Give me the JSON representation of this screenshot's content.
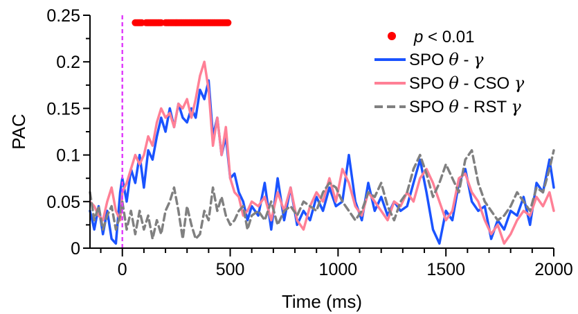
{
  "chart_data": {
    "type": "line",
    "xlabel": "Time (ms)",
    "ylabel": "PAC",
    "xlim": [
      -150,
      2000
    ],
    "ylim": [
      0,
      0.25
    ],
    "x_ticks": [
      0,
      500,
      1000,
      1500,
      2000
    ],
    "x_tick_labels": [
      "0",
      "500",
      "1000",
      "1500",
      "2000"
    ],
    "y_ticks": [
      0,
      0.05,
      0.1,
      0.15,
      0.2,
      0.25
    ],
    "y_tick_labels": [
      "0",
      "0.05",
      "0.1",
      "0.15",
      "0.2",
      "0.25"
    ],
    "grid": false,
    "legend_position": "top-right",
    "event_marker": {
      "x": 0,
      "color": "#e040fb",
      "style": "dashed"
    },
    "significance": {
      "label_italic": "p",
      "label_rest": " < 0.01",
      "color": "#ff0000",
      "y": 0.242,
      "segments": [
        [
          60,
          90
        ],
        [
          110,
          180
        ],
        [
          200,
          490
        ]
      ]
    },
    "series": [
      {
        "name": "SPO θ - γ",
        "label_main": "SPO ",
        "label_theta": "θ",
        "label_mid": " - ",
        "label_gamma": "γ",
        "color": "#1a53ff",
        "dash": "solid",
        "x": [
          -150,
          -130,
          -110,
          -90,
          -70,
          -50,
          -30,
          -10,
          0,
          20,
          40,
          60,
          80,
          100,
          120,
          140,
          160,
          180,
          200,
          220,
          240,
          260,
          280,
          300,
          320,
          340,
          360,
          380,
          400,
          420,
          440,
          460,
          480,
          500,
          520,
          540,
          560,
          580,
          600,
          630,
          660,
          690,
          720,
          750,
          780,
          810,
          840,
          870,
          900,
          930,
          960,
          990,
          1020,
          1050,
          1080,
          1110,
          1140,
          1170,
          1200,
          1230,
          1260,
          1290,
          1320,
          1350,
          1380,
          1410,
          1440,
          1470,
          1500,
          1530,
          1560,
          1590,
          1620,
          1650,
          1680,
          1710,
          1740,
          1770,
          1800,
          1830,
          1860,
          1890,
          1920,
          1950,
          1980,
          2000
        ],
        "y": [
          0.04,
          0.02,
          0.045,
          0.015,
          0.04,
          0.01,
          0.005,
          0.06,
          0.075,
          0.05,
          0.085,
          0.07,
          0.1,
          0.065,
          0.105,
          0.095,
          0.12,
          0.14,
          0.125,
          0.15,
          0.13,
          0.155,
          0.14,
          0.135,
          0.15,
          0.14,
          0.17,
          0.16,
          0.18,
          0.12,
          0.14,
          0.1,
          0.12,
          0.075,
          0.08,
          0.06,
          0.05,
          0.03,
          0.045,
          0.035,
          0.07,
          0.02,
          0.075,
          0.03,
          0.065,
          0.025,
          0.04,
          0.03,
          0.055,
          0.04,
          0.065,
          0.045,
          0.05,
          0.1,
          0.05,
          0.03,
          0.07,
          0.04,
          0.055,
          0.035,
          0.05,
          0.04,
          0.045,
          0.07,
          0.095,
          0.06,
          0.02,
          0.005,
          0.04,
          0.03,
          0.07,
          0.085,
          0.05,
          0.04,
          0.045,
          0.01,
          0.03,
          0.02,
          0.04,
          0.035,
          0.055,
          0.025,
          0.07,
          0.06,
          0.095,
          0.065
        ]
      },
      {
        "name": "SPO θ - CSO γ",
        "label_main": "SPO ",
        "label_theta": "θ",
        "label_mid": " - CSO ",
        "label_gamma": "γ",
        "color": "#ff8096",
        "dash": "solid",
        "x": [
          -150,
          -130,
          -110,
          -90,
          -70,
          -50,
          -30,
          -10,
          0,
          20,
          40,
          60,
          80,
          100,
          120,
          140,
          160,
          180,
          200,
          220,
          240,
          260,
          280,
          300,
          320,
          340,
          360,
          380,
          400,
          420,
          440,
          460,
          480,
          500,
          520,
          540,
          560,
          580,
          600,
          630,
          660,
          690,
          720,
          750,
          780,
          810,
          840,
          870,
          900,
          930,
          960,
          990,
          1020,
          1050,
          1080,
          1110,
          1140,
          1170,
          1200,
          1230,
          1260,
          1290,
          1320,
          1350,
          1380,
          1410,
          1440,
          1470,
          1500,
          1530,
          1560,
          1590,
          1620,
          1650,
          1680,
          1710,
          1740,
          1770,
          1800,
          1830,
          1860,
          1890,
          1920,
          1950,
          1980,
          2000
        ],
        "y": [
          0.05,
          0.045,
          0.035,
          0.03,
          0.05,
          0.065,
          0.04,
          0.03,
          0.06,
          0.07,
          0.085,
          0.1,
          0.09,
          0.1,
          0.12,
          0.11,
          0.135,
          0.15,
          0.14,
          0.145,
          0.13,
          0.155,
          0.15,
          0.16,
          0.14,
          0.16,
          0.185,
          0.2,
          0.17,
          0.11,
          0.14,
          0.1,
          0.13,
          0.075,
          0.06,
          0.055,
          0.035,
          0.04,
          0.05,
          0.045,
          0.055,
          0.03,
          0.06,
          0.04,
          0.065,
          0.03,
          0.02,
          0.045,
          0.06,
          0.05,
          0.075,
          0.05,
          0.085,
          0.07,
          0.045,
          0.035,
          0.06,
          0.05,
          0.04,
          0.03,
          0.05,
          0.045,
          0.06,
          0.05,
          0.075,
          0.085,
          0.07,
          0.05,
          0.03,
          0.04,
          0.075,
          0.08,
          0.06,
          0.05,
          0.03,
          0.015,
          0.025,
          0.005,
          0.015,
          0.03,
          0.04,
          0.035,
          0.055,
          0.045,
          0.06,
          0.04
        ]
      },
      {
        "name": "SPO θ - RST γ",
        "label_main": "SPO ",
        "label_theta": "θ",
        "label_mid": " - RST ",
        "label_gamma": "γ",
        "color": "#808080",
        "dash": "dashed",
        "x": [
          -150,
          -130,
          -110,
          -90,
          -70,
          -50,
          -30,
          -10,
          0,
          20,
          40,
          60,
          80,
          100,
          120,
          140,
          160,
          180,
          200,
          220,
          240,
          260,
          280,
          300,
          320,
          340,
          360,
          380,
          400,
          420,
          440,
          460,
          480,
          500,
          520,
          540,
          560,
          580,
          600,
          630,
          660,
          690,
          720,
          750,
          780,
          810,
          840,
          870,
          900,
          930,
          960,
          990,
          1020,
          1050,
          1080,
          1110,
          1140,
          1170,
          1200,
          1230,
          1260,
          1290,
          1320,
          1350,
          1380,
          1410,
          1440,
          1470,
          1500,
          1530,
          1560,
          1590,
          1620,
          1650,
          1680,
          1710,
          1740,
          1770,
          1800,
          1830,
          1860,
          1890,
          1920,
          1950,
          1980,
          2000
        ],
        "y": [
          0.06,
          0.03,
          0.045,
          0.02,
          0.035,
          0.045,
          0.02,
          0.035,
          0.05,
          0.02,
          0.04,
          0.015,
          0.04,
          0.02,
          0.035,
          0.01,
          0.03,
          0.015,
          0.04,
          0.05,
          0.065,
          0.04,
          0.01,
          0.045,
          0.025,
          0.01,
          0.015,
          0.04,
          0.03,
          0.065,
          0.04,
          0.055,
          0.035,
          0.025,
          0.03,
          0.04,
          0.045,
          0.02,
          0.035,
          0.04,
          0.03,
          0.05,
          0.025,
          0.04,
          0.045,
          0.035,
          0.05,
          0.045,
          0.04,
          0.06,
          0.07,
          0.065,
          0.05,
          0.04,
          0.03,
          0.04,
          0.06,
          0.055,
          0.07,
          0.045,
          0.03,
          0.05,
          0.06,
          0.085,
          0.1,
          0.08,
          0.055,
          0.07,
          0.09,
          0.075,
          0.06,
          0.095,
          0.105,
          0.07,
          0.05,
          0.04,
          0.03,
          0.035,
          0.045,
          0.06,
          0.05,
          0.04,
          0.065,
          0.06,
          0.085,
          0.105
        ]
      }
    ]
  }
}
